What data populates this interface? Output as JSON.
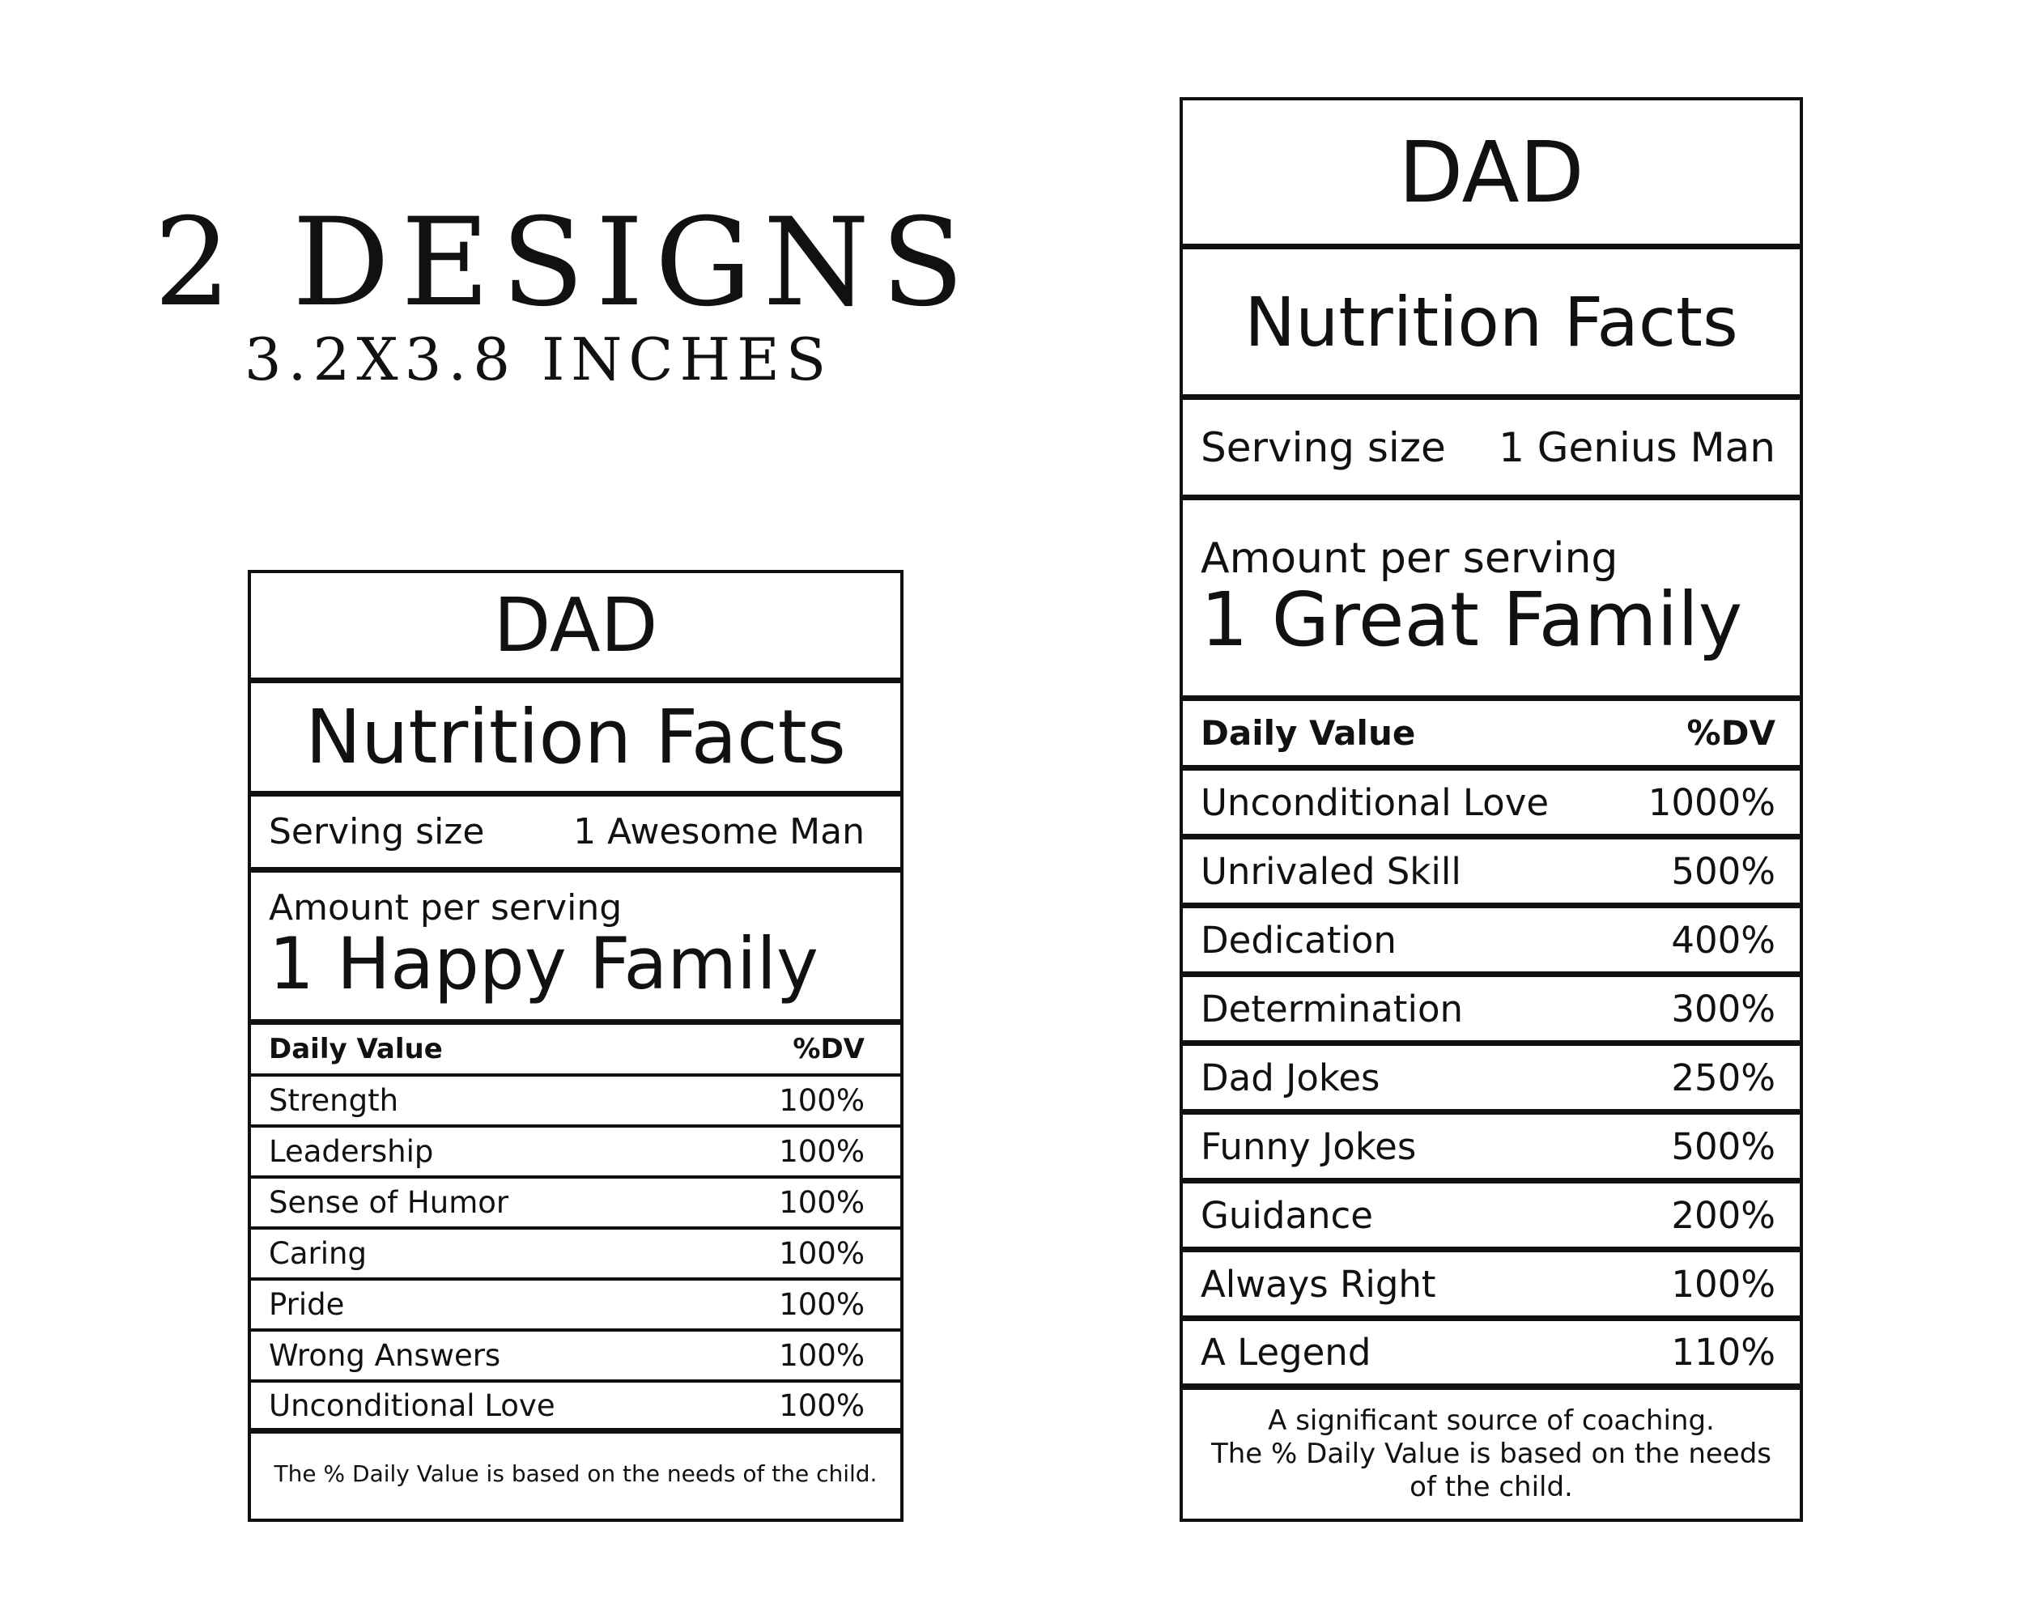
{
  "headline": {
    "title": "2 DESIGNS",
    "subtitle": "3.2X3.8 INCHES"
  },
  "label1": {
    "name": "DAD",
    "heading": "Nutrition Facts",
    "serving_label": "Serving size",
    "serving_value": "1 Awesome Man",
    "amount_label": "Amount per serving",
    "amount_value": "1 Happy Family",
    "dv_label": "Daily Value",
    "dv_unit": "%DV",
    "items": [
      {
        "name": "Strength",
        "value": "100%"
      },
      {
        "name": "Leadership",
        "value": "100%"
      },
      {
        "name": "Sense of Humor",
        "value": "100%"
      },
      {
        "name": "Caring",
        "value": "100%"
      },
      {
        "name": "Pride",
        "value": "100%"
      },
      {
        "name": "Wrong Answers",
        "value": "100%"
      },
      {
        "name": "Unconditional Love",
        "value": "100%"
      }
    ],
    "footnote": "The % Daily Value is based on the needs of the child."
  },
  "label2": {
    "name": "DAD",
    "heading": "Nutrition Facts",
    "serving_label": "Serving size",
    "serving_value": "1 Genius Man",
    "amount_label": "Amount per serving",
    "amount_value": "1 Great Family",
    "dv_label": "Daily Value",
    "dv_unit": "%DV",
    "items": [
      {
        "name": "Unconditional Love",
        "value": "1000%"
      },
      {
        "name": "Unrivaled Skill",
        "value": "500%"
      },
      {
        "name": "Dedication",
        "value": "400%"
      },
      {
        "name": "Determination",
        "value": "300%"
      },
      {
        "name": "Dad Jokes",
        "value": "250%"
      },
      {
        "name": "Funny Jokes",
        "value": "500%"
      },
      {
        "name": "Guidance",
        "value": "200%"
      },
      {
        "name": "Always Right",
        "value": "100%"
      },
      {
        "name": "A Legend",
        "value": "110%"
      }
    ],
    "footnote_line1": "A significant source of coaching.",
    "footnote_line2": "The % Daily Value is based on the needs of the child."
  }
}
